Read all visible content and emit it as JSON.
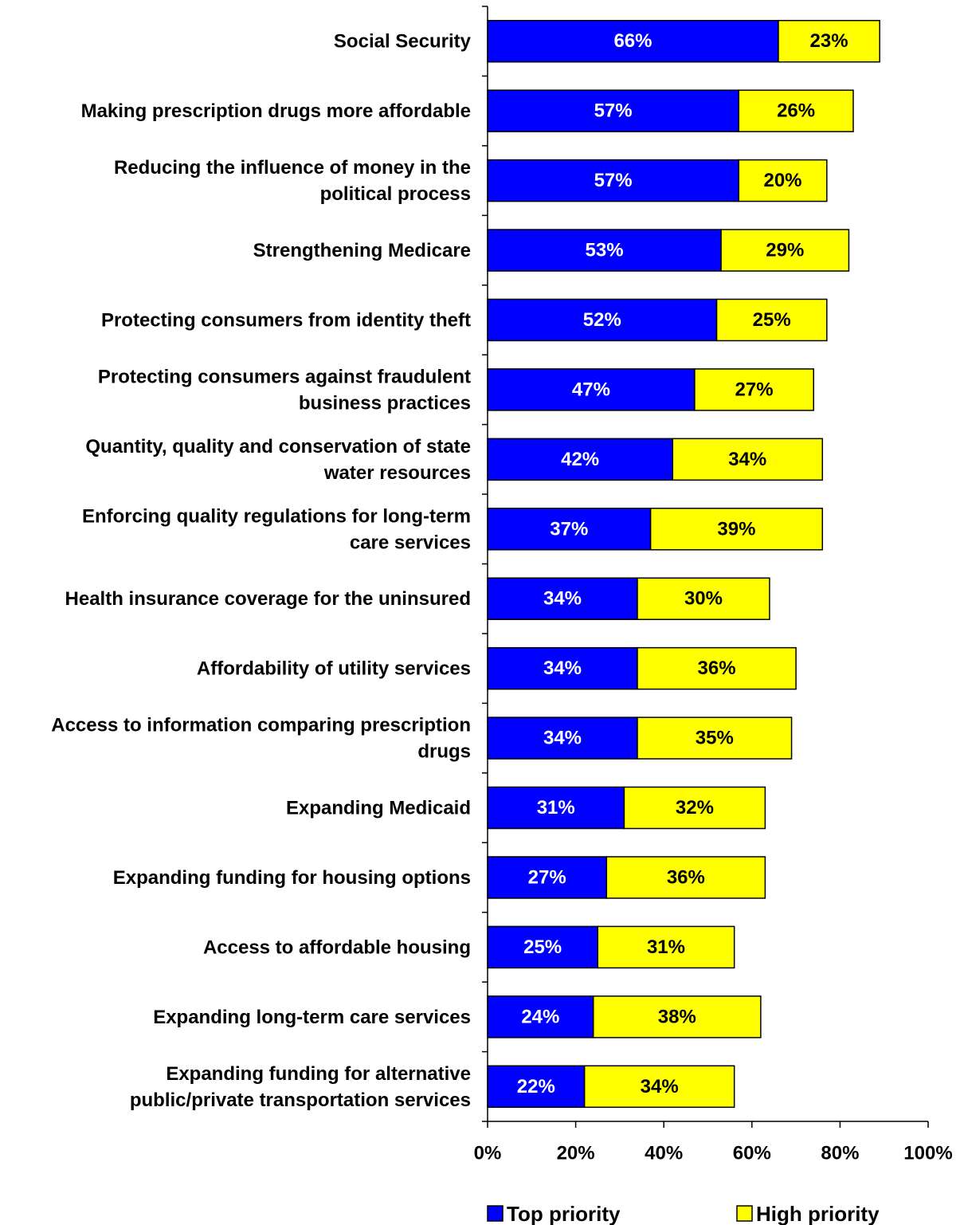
{
  "chart_data": {
    "type": "bar",
    "orientation": "horizontal",
    "stacked": true,
    "title": "",
    "xlabel": "",
    "ylabel": "",
    "xlim": [
      0,
      100
    ],
    "x_ticks": [
      "0%",
      "20%",
      "40%",
      "60%",
      "80%",
      "100%"
    ],
    "x_tick_values": [
      0,
      20,
      40,
      60,
      80,
      100
    ],
    "grid": false,
    "legend_position": "bottom",
    "categories": [
      [
        "Social Security"
      ],
      [
        "Making prescription drugs more affordable"
      ],
      [
        "Reducing the influence of money in the",
        "political process"
      ],
      [
        "Strengthening Medicare"
      ],
      [
        "Protecting consumers from identity theft"
      ],
      [
        "Protecting consumers against fraudulent",
        "business practices"
      ],
      [
        "Quantity, quality and conservation of state",
        "water resources"
      ],
      [
        "Enforcing quality regulations for long-term",
        "care services"
      ],
      [
        "Health insurance coverage for the uninsured"
      ],
      [
        "Affordability of utility services"
      ],
      [
        "Access to information comparing prescription",
        "drugs"
      ],
      [
        "Expanding Medicaid"
      ],
      [
        "Expanding funding for housing options"
      ],
      [
        "Access to affordable housing"
      ],
      [
        "Expanding long-term care services"
      ],
      [
        "Expanding funding for alternative",
        "public/private transportation services"
      ]
    ],
    "series": [
      {
        "name": "Top priority",
        "color": "#0000FF",
        "label_color": "#FFFFFF",
        "values": [
          66,
          57,
          57,
          53,
          52,
          47,
          42,
          37,
          34,
          34,
          34,
          31,
          27,
          25,
          24,
          22
        ],
        "labels": [
          "66%",
          "57%",
          "57%",
          "53%",
          "52%",
          "47%",
          "42%",
          "37%",
          "34%",
          "34%",
          "34%",
          "31%",
          "27%",
          "25%",
          "24%",
          "22%"
        ]
      },
      {
        "name": "High priority",
        "color": "#FFFF00",
        "label_color": "#000000",
        "values": [
          23,
          26,
          20,
          29,
          25,
          27,
          34,
          39,
          30,
          36,
          35,
          32,
          36,
          31,
          38,
          34
        ],
        "labels": [
          "23%",
          "26%",
          "20%",
          "29%",
          "25%",
          "27%",
          "34%",
          "39%",
          "30%",
          "36%",
          "35%",
          "32%",
          "36%",
          "31%",
          "38%",
          "34%"
        ]
      }
    ]
  }
}
